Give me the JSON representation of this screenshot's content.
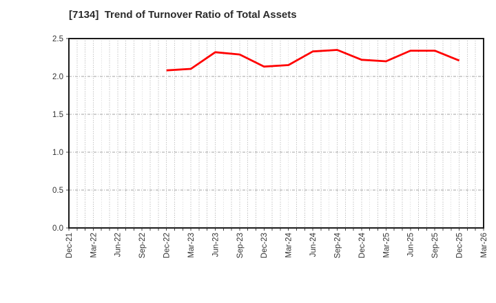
{
  "chart": {
    "title": "[7134]  Trend of Turnover Ratio of Total Assets"
  },
  "chart_data": {
    "type": "line",
    "title": "[7134]  Trend of Turnover Ratio of Total Assets",
    "xlabel": "",
    "ylabel": "",
    "ylim": [
      0,
      2.5
    ],
    "y_ticks": [
      "0.0",
      "0.5",
      "1.0",
      "1.5",
      "2.0",
      "2.5"
    ],
    "x_tick_labels": [
      "Dec-21",
      "Mar-22",
      "Jun-22",
      "Sep-22",
      "Dec-22",
      "Mar-23",
      "Jun-23",
      "Sep-23",
      "Dec-23",
      "Mar-24",
      "Jun-24",
      "Sep-24",
      "Dec-24",
      "Mar-25",
      "Jun-25",
      "Sep-25",
      "Dec-25",
      "Mar-26"
    ],
    "x_axis_total_months": 51,
    "grid": true,
    "legend": false,
    "series": [
      {
        "name": "Turnover Ratio of Total Assets",
        "color": "#ff0000",
        "x": [
          "Dec-22",
          "Mar-23",
          "Jun-23",
          "Sep-23",
          "Dec-23",
          "Mar-24",
          "Jun-24",
          "Sep-24",
          "Dec-24",
          "Mar-25",
          "Jun-25",
          "Sep-25",
          "Dec-25"
        ],
        "month_offsets": [
          12,
          15,
          18,
          21,
          24,
          27,
          30,
          33,
          36,
          39,
          42,
          45,
          48
        ],
        "values": [
          2.08,
          2.1,
          2.32,
          2.29,
          2.13,
          2.15,
          2.33,
          2.35,
          2.22,
          2.2,
          2.34,
          2.34,
          2.21
        ]
      }
    ],
    "styles": {
      "line_color": "#ff0000",
      "title_color": "#2b2b2b",
      "tick_label_color": "#333333",
      "axis_border_color": "#1a1a1a",
      "grid_color": "#999999"
    }
  }
}
